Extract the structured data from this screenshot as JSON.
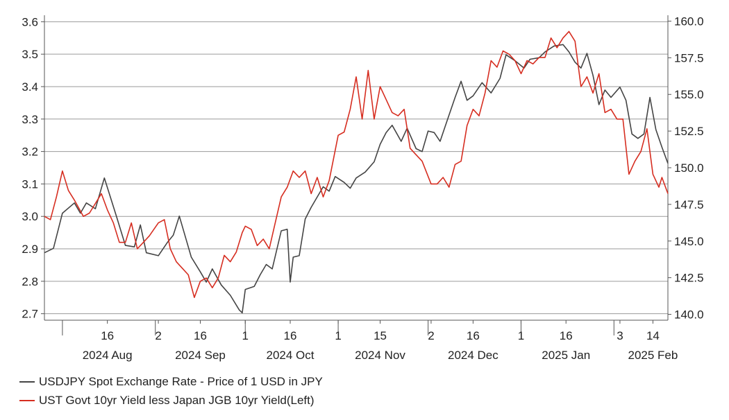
{
  "chart_data": {
    "type": "line",
    "title": "",
    "xlabel": "",
    "ylabel_left": "",
    "ylabel_right": "",
    "grid": true,
    "legend_position": "bottom-left",
    "x_range": [
      "2024-07-26",
      "2025-02-19"
    ],
    "y_left_range": [
      2.68,
      3.62
    ],
    "y_right_range": [
      139.6,
      160.4
    ],
    "y_left_ticks": [
      "2.7",
      "2.8",
      "2.9",
      "3.0",
      "3.1",
      "3.2",
      "3.3",
      "3.4",
      "3.5",
      "3.6"
    ],
    "y_right_ticks": [
      "140.0",
      "142.5",
      "145.0",
      "147.5",
      "150.0",
      "152.5",
      "155.0",
      "157.5",
      "160.0"
    ],
    "x_day_ticks": [
      {
        "date": "2024-08-16",
        "label": "16"
      },
      {
        "date": "2024-09-02",
        "label": "2"
      },
      {
        "date": "2024-09-16",
        "label": "16"
      },
      {
        "date": "2024-10-01",
        "label": "1"
      },
      {
        "date": "2024-10-16",
        "label": "16"
      },
      {
        "date": "2024-11-01",
        "label": "1"
      },
      {
        "date": "2024-11-15",
        "label": "15"
      },
      {
        "date": "2024-12-02",
        "label": "2"
      },
      {
        "date": "2024-12-16",
        "label": "16"
      },
      {
        "date": "2025-01-01",
        "label": "1"
      },
      {
        "date": "2025-01-16",
        "label": "16"
      },
      {
        "date": "2025-02-03",
        "label": "3"
      },
      {
        "date": "2025-02-14",
        "label": "14"
      }
    ],
    "x_month_labels": [
      {
        "date": "2024-08-16",
        "label": "2024 Aug"
      },
      {
        "date": "2024-09-16",
        "label": "2024 Sep"
      },
      {
        "date": "2024-10-16",
        "label": "2024 Oct"
      },
      {
        "date": "2024-11-15",
        "label": "2024 Nov"
      },
      {
        "date": "2024-12-16",
        "label": "2024 Dec"
      },
      {
        "date": "2025-01-16",
        "label": "2025 Jan"
      },
      {
        "date": "2025-02-14",
        "label": "2025 Feb"
      }
    ],
    "series": [
      {
        "name": "USDJPY Spot Exchange Rate - Price of 1 USD in JPY",
        "axis": "right",
        "color": "#444444",
        "points": [
          [
            "2024-07-26",
            144.2
          ],
          [
            "2024-07-29",
            144.5
          ],
          [
            "2024-08-01",
            146.9
          ],
          [
            "2024-08-05",
            147.6
          ],
          [
            "2024-08-07",
            146.9
          ],
          [
            "2024-08-09",
            147.6
          ],
          [
            "2024-08-12",
            147.2
          ],
          [
            "2024-08-15",
            149.3
          ],
          [
            "2024-08-19",
            146.7
          ],
          [
            "2024-08-22",
            144.7
          ],
          [
            "2024-08-25",
            144.6
          ],
          [
            "2024-08-27",
            146.1
          ],
          [
            "2024-08-29",
            144.2
          ],
          [
            "2024-09-02",
            144.0
          ],
          [
            "2024-09-05",
            144.9
          ],
          [
            "2024-09-07",
            145.4
          ],
          [
            "2024-09-09",
            146.7
          ],
          [
            "2024-09-12",
            144.6
          ],
          [
            "2024-09-13",
            143.9
          ],
          [
            "2024-09-16",
            142.9
          ],
          [
            "2024-09-18",
            142.2
          ],
          [
            "2024-09-20",
            143.1
          ],
          [
            "2024-09-23",
            142.0
          ],
          [
            "2024-09-26",
            141.3
          ],
          [
            "2024-09-29",
            140.3
          ],
          [
            "2024-09-30",
            140.1
          ],
          [
            "2024-10-01",
            141.7
          ],
          [
            "2024-10-04",
            141.9
          ],
          [
            "2024-10-06",
            142.7
          ],
          [
            "2024-10-08",
            143.4
          ],
          [
            "2024-10-10",
            143.1
          ],
          [
            "2024-10-13",
            145.7
          ],
          [
            "2024-10-15",
            145.8
          ],
          [
            "2024-10-16",
            142.2
          ],
          [
            "2024-10-17",
            143.9
          ],
          [
            "2024-10-19",
            144.0
          ],
          [
            "2024-10-21",
            146.5
          ],
          [
            "2024-10-23",
            147.3
          ],
          [
            "2024-10-27",
            148.7
          ],
          [
            "2024-10-29",
            148.4
          ],
          [
            "2024-10-31",
            149.4
          ],
          [
            "2024-11-03",
            149.0
          ],
          [
            "2024-11-05",
            148.6
          ],
          [
            "2024-11-07",
            149.3
          ],
          [
            "2024-11-10",
            149.7
          ],
          [
            "2024-11-13",
            150.4
          ],
          [
            "2024-11-15",
            151.6
          ],
          [
            "2024-11-17",
            152.4
          ],
          [
            "2024-11-19",
            152.9
          ],
          [
            "2024-11-22",
            151.8
          ],
          [
            "2024-11-24",
            152.7
          ],
          [
            "2024-11-27",
            151.3
          ],
          [
            "2024-11-29",
            151.1
          ],
          [
            "2024-12-01",
            152.5
          ],
          [
            "2024-12-03",
            152.4
          ],
          [
            "2024-12-05",
            151.8
          ],
          [
            "2024-12-07",
            153.0
          ],
          [
            "2024-12-10",
            154.8
          ],
          [
            "2024-12-12",
            155.9
          ],
          [
            "2024-12-14",
            154.6
          ],
          [
            "2024-12-16",
            154.9
          ],
          [
            "2024-12-19",
            155.8
          ],
          [
            "2024-12-22",
            155.1
          ],
          [
            "2024-12-25",
            156.1
          ],
          [
            "2024-12-27",
            157.7
          ],
          [
            "2024-12-30",
            157.3
          ],
          [
            "2025-01-02",
            156.8
          ],
          [
            "2025-01-04",
            157.4
          ],
          [
            "2025-01-07",
            157.5
          ],
          [
            "2025-01-09",
            157.9
          ],
          [
            "2025-01-12",
            158.3
          ],
          [
            "2025-01-15",
            158.4
          ],
          [
            "2025-01-17",
            157.9
          ],
          [
            "2025-01-19",
            157.2
          ],
          [
            "2025-01-21",
            156.8
          ],
          [
            "2025-01-23",
            157.8
          ],
          [
            "2025-01-25",
            156.3
          ],
          [
            "2025-01-27",
            154.3
          ],
          [
            "2025-01-29",
            155.3
          ],
          [
            "2025-01-31",
            154.8
          ],
          [
            "2025-02-03",
            155.5
          ],
          [
            "2025-02-05",
            154.6
          ],
          [
            "2025-02-07",
            152.3
          ],
          [
            "2025-02-09",
            152.0
          ],
          [
            "2025-02-11",
            152.3
          ],
          [
            "2025-02-13",
            154.8
          ],
          [
            "2025-02-15",
            152.6
          ],
          [
            "2025-02-17",
            151.4
          ],
          [
            "2025-02-19",
            150.3
          ]
        ]
      },
      {
        "name": "UST Govt 10yr Yield less Japan JGB 10yr Yield(Left)",
        "axis": "left",
        "color": "#d62d20",
        "points": [
          [
            "2024-07-26",
            3.0
          ],
          [
            "2024-07-28",
            2.99
          ],
          [
            "2024-07-30",
            3.06
          ],
          [
            "2024-08-01",
            3.14
          ],
          [
            "2024-08-03",
            3.08
          ],
          [
            "2024-08-05",
            3.05
          ],
          [
            "2024-08-08",
            3.0
          ],
          [
            "2024-08-10",
            3.01
          ],
          [
            "2024-08-12",
            3.04
          ],
          [
            "2024-08-14",
            3.07
          ],
          [
            "2024-08-16",
            3.02
          ],
          [
            "2024-08-18",
            2.98
          ],
          [
            "2024-08-20",
            2.92
          ],
          [
            "2024-08-22",
            2.92
          ],
          [
            "2024-08-24",
            2.98
          ],
          [
            "2024-08-26",
            2.9
          ],
          [
            "2024-08-28",
            2.92
          ],
          [
            "2024-08-30",
            2.94
          ],
          [
            "2024-09-02",
            2.98
          ],
          [
            "2024-09-04",
            2.99
          ],
          [
            "2024-09-06",
            2.9
          ],
          [
            "2024-09-08",
            2.86
          ],
          [
            "2024-09-10",
            2.84
          ],
          [
            "2024-09-12",
            2.82
          ],
          [
            "2024-09-14",
            2.75
          ],
          [
            "2024-09-16",
            2.8
          ],
          [
            "2024-09-18",
            2.81
          ],
          [
            "2024-09-20",
            2.78
          ],
          [
            "2024-09-22",
            2.81
          ],
          [
            "2024-09-24",
            2.88
          ],
          [
            "2024-09-26",
            2.86
          ],
          [
            "2024-09-28",
            2.89
          ],
          [
            "2024-09-30",
            2.95
          ],
          [
            "2024-10-01",
            2.97
          ],
          [
            "2024-10-03",
            2.96
          ],
          [
            "2024-10-05",
            2.91
          ],
          [
            "2024-10-07",
            2.93
          ],
          [
            "2024-10-09",
            2.9
          ],
          [
            "2024-10-11",
            2.98
          ],
          [
            "2024-10-13",
            3.06
          ],
          [
            "2024-10-15",
            3.09
          ],
          [
            "2024-10-17",
            3.14
          ],
          [
            "2024-10-19",
            3.12
          ],
          [
            "2024-10-21",
            3.14
          ],
          [
            "2024-10-23",
            3.07
          ],
          [
            "2024-10-25",
            3.12
          ],
          [
            "2024-10-27",
            3.06
          ],
          [
            "2024-10-29",
            3.11
          ],
          [
            "2024-11-01",
            3.25
          ],
          [
            "2024-11-03",
            3.26
          ],
          [
            "2024-11-05",
            3.33
          ],
          [
            "2024-11-07",
            3.43
          ],
          [
            "2024-11-09",
            3.3
          ],
          [
            "2024-11-11",
            3.45
          ],
          [
            "2024-11-13",
            3.3
          ],
          [
            "2024-11-15",
            3.4
          ],
          [
            "2024-11-17",
            3.36
          ],
          [
            "2024-11-19",
            3.32
          ],
          [
            "2024-11-21",
            3.31
          ],
          [
            "2024-11-23",
            3.33
          ],
          [
            "2024-11-25",
            3.21
          ],
          [
            "2024-11-27",
            3.19
          ],
          [
            "2024-11-29",
            3.17
          ],
          [
            "2024-12-02",
            3.1
          ],
          [
            "2024-12-04",
            3.1
          ],
          [
            "2024-12-06",
            3.12
          ],
          [
            "2024-12-08",
            3.09
          ],
          [
            "2024-12-10",
            3.16
          ],
          [
            "2024-12-12",
            3.17
          ],
          [
            "2024-12-14",
            3.28
          ],
          [
            "2024-12-16",
            3.33
          ],
          [
            "2024-12-18",
            3.31
          ],
          [
            "2024-12-20",
            3.38
          ],
          [
            "2024-12-22",
            3.48
          ],
          [
            "2024-12-24",
            3.46
          ],
          [
            "2024-12-26",
            3.51
          ],
          [
            "2024-12-28",
            3.5
          ],
          [
            "2024-12-30",
            3.48
          ],
          [
            "2025-01-01",
            3.44
          ],
          [
            "2025-01-03",
            3.48
          ],
          [
            "2025-01-05",
            3.47
          ],
          [
            "2025-01-07",
            3.49
          ],
          [
            "2025-01-09",
            3.49
          ],
          [
            "2025-01-11",
            3.55
          ],
          [
            "2025-01-13",
            3.52
          ],
          [
            "2025-01-15",
            3.55
          ],
          [
            "2025-01-17",
            3.57
          ],
          [
            "2025-01-19",
            3.54
          ],
          [
            "2025-01-21",
            3.4
          ],
          [
            "2025-01-23",
            3.43
          ],
          [
            "2025-01-25",
            3.38
          ],
          [
            "2025-01-27",
            3.44
          ],
          [
            "2025-01-29",
            3.32
          ],
          [
            "2025-01-31",
            3.33
          ],
          [
            "2025-02-02",
            3.3
          ],
          [
            "2025-02-04",
            3.3
          ],
          [
            "2025-02-06",
            3.13
          ],
          [
            "2025-02-08",
            3.17
          ],
          [
            "2025-02-10",
            3.2
          ],
          [
            "2025-02-12",
            3.27
          ],
          [
            "2025-02-14",
            3.13
          ],
          [
            "2025-02-16",
            3.09
          ],
          [
            "2025-02-17",
            3.12
          ],
          [
            "2025-02-19",
            3.07
          ]
        ]
      }
    ]
  }
}
